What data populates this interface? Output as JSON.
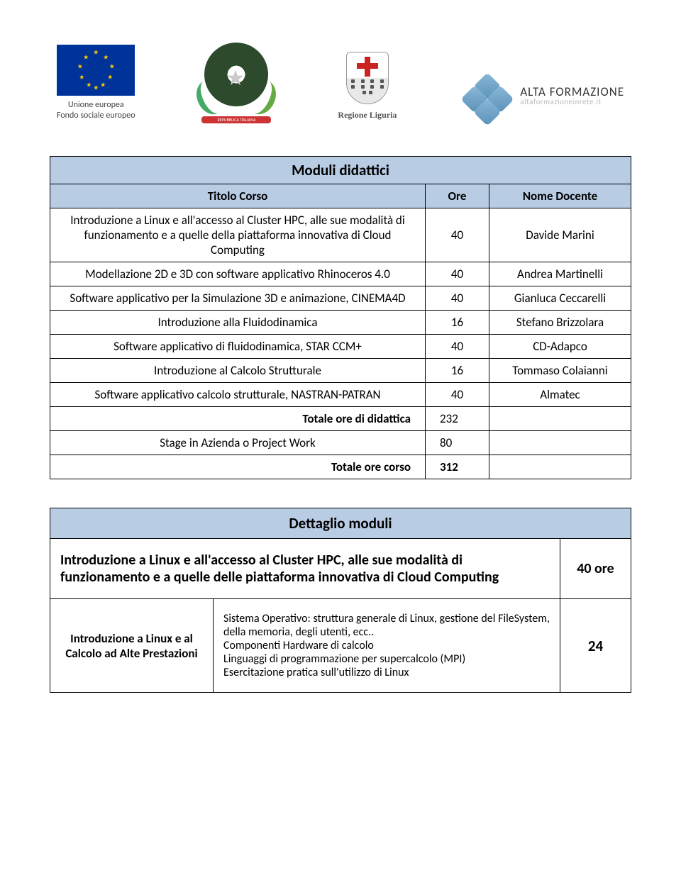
{
  "logos": {
    "eu": {
      "line1": "Unione europea",
      "line2": "Fondo sociale europeo"
    },
    "italy_ribbon": "REPUBBLICA ITALIANA",
    "liguria": "Regione Liguria",
    "alta": {
      "title": "ALTA FORMAZIONE",
      "sub": "altaformazioneinrete.it"
    }
  },
  "moduli_table": {
    "header_span": "Moduli didattici",
    "col1": "Titolo Corso",
    "col2": "Ore",
    "col3": "Nome Docente",
    "rows": [
      {
        "title": "Introduzione a Linux e all'accesso al Cluster HPC, alle sue modalità di funzionamento e a quelle della piattaforma innovativa di Cloud Computing",
        "ore": "40",
        "docente": "Davide Marini"
      },
      {
        "title": "Modellazione 2D e 3D con software applicativo Rhinoceros 4.0",
        "ore": "40",
        "docente": "Andrea Martinelli"
      },
      {
        "title": "Software applicativo per la Simulazione 3D e animazione, CINEMA4D",
        "ore": "40",
        "docente": "Gianluca Ceccarelli"
      },
      {
        "title": "Introduzione  alla Fluidodinamica",
        "ore": "16",
        "docente": "Stefano Brizzolara"
      },
      {
        "title": "Software applicativo  di fluidodinamica, STAR CCM+",
        "ore": "40",
        "docente": "CD-Adapco"
      },
      {
        "title": "Introduzione  al Calcolo Strutturale",
        "ore": "16",
        "docente": "Tommaso Colaianni"
      },
      {
        "title": "Software applicativo calcolo strutturale, NASTRAN-PATRAN",
        "ore": "40",
        "docente": "Almatec"
      }
    ],
    "total_didattica_label": "Totale ore di didattica",
    "total_didattica_value": "232",
    "stage_label": "Stage in Azienda o Project Work",
    "stage_value": "80",
    "total_corso_label": "Totale ore corso",
    "total_corso_value": "312"
  },
  "dettaglio": {
    "header": "Dettaglio moduli",
    "module_title": "Introduzione a Linux e  all'accesso al Cluster HPC, alle sue modalità di funzionamento e a quelle delle piattaforma innovativa di Cloud Computing",
    "module_ore": "40 ore",
    "sub_topic": "Introduzione a Linux e al Calcolo ad Alte Prestazioni",
    "sub_desc": "Sistema Operativo: struttura generale di Linux, gestione del FileSystem, della memoria, degli utenti, ecc..\nComponenti Hardware di calcolo\nLinguaggi di programmazione per supercalcolo (MPI)\nEsercitazione pratica sull'utilizzo di Linux",
    "sub_ore": "24"
  }
}
